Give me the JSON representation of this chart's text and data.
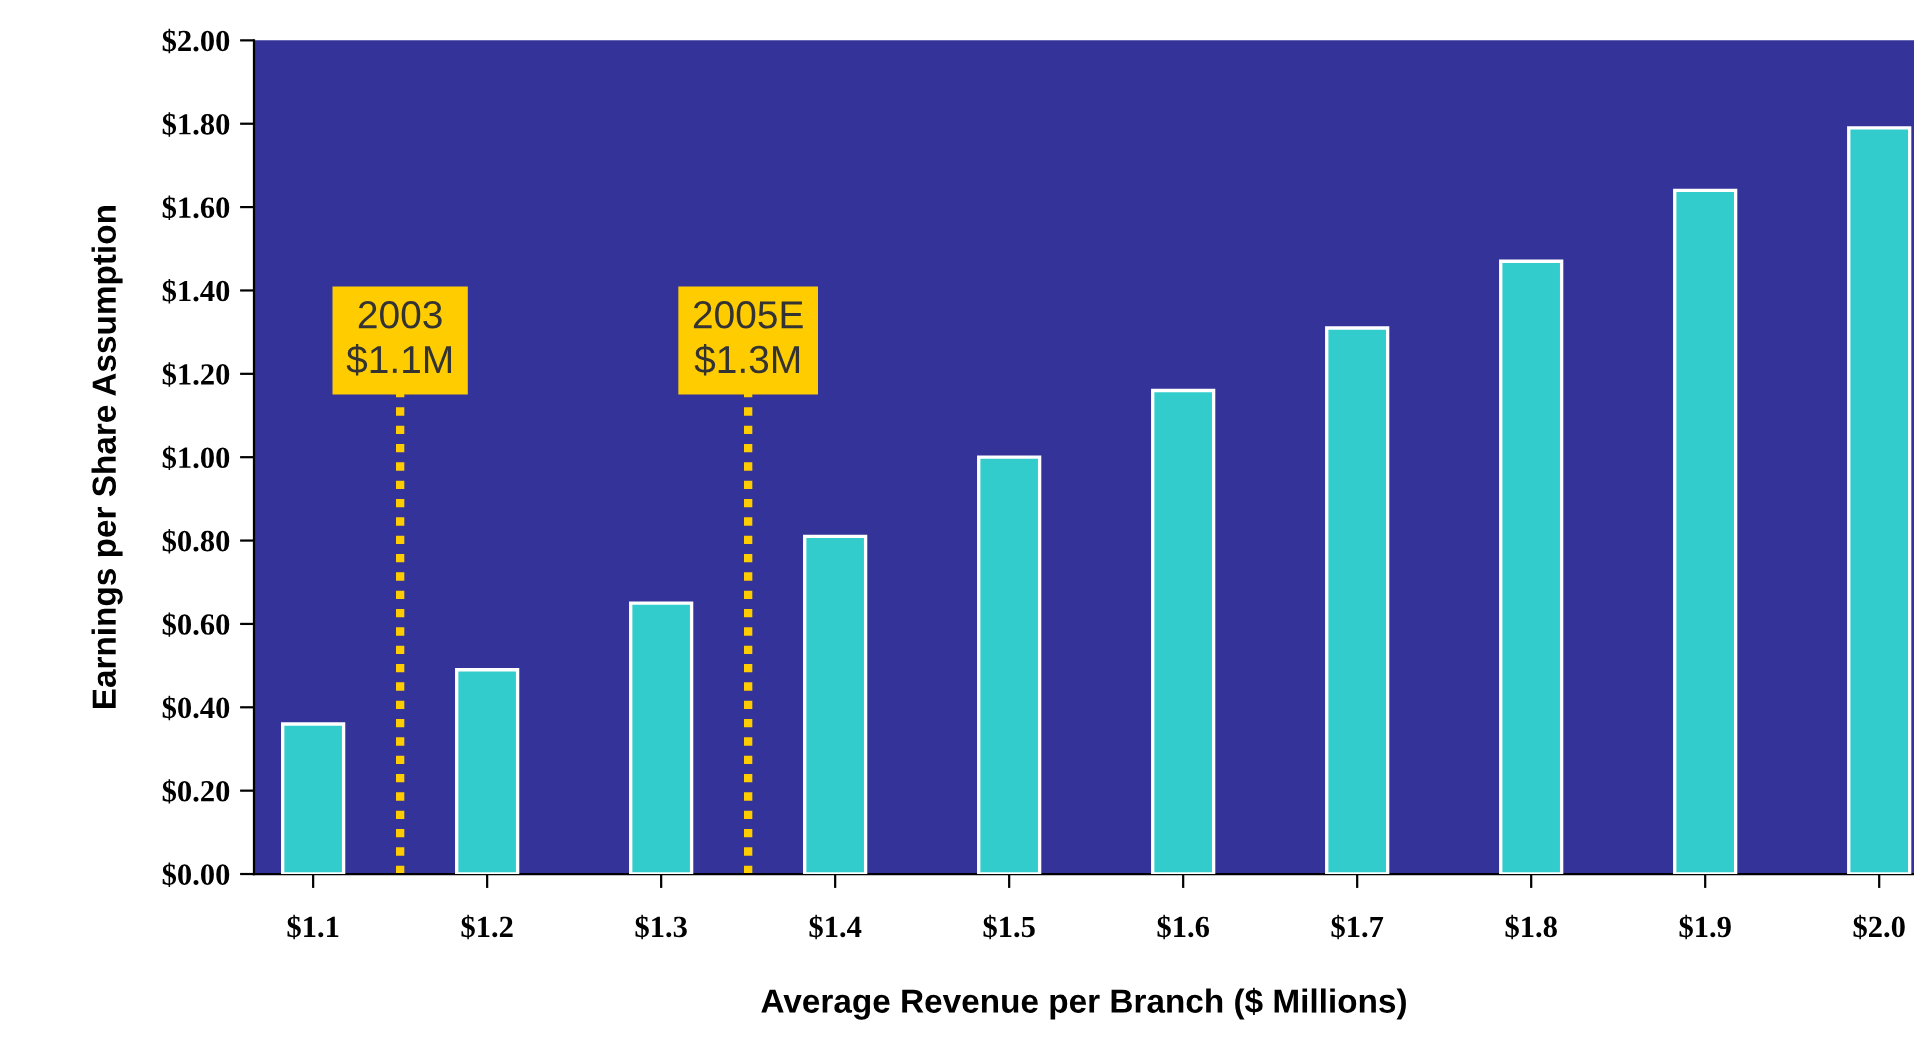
{
  "chart_data": {
    "type": "bar",
    "xlabel": "Average Revenue per Branch ($ Millions)",
    "ylabel": "Earnings per Share Assumption",
    "x": [
      1.1,
      1.2,
      1.3,
      1.4,
      1.5,
      1.6,
      1.7,
      1.8,
      1.9,
      2.0
    ],
    "values": [
      0.36,
      0.49,
      0.65,
      0.81,
      1.0,
      1.16,
      1.31,
      1.47,
      1.64,
      1.79
    ],
    "color": "#33cccc",
    "xlim": [
      1.066,
      2.02
    ],
    "xticks": [
      {
        "value": 1.1,
        "label": "$1.1"
      },
      {
        "value": 1.2,
        "label": "$1.2"
      },
      {
        "value": 1.3,
        "label": "$1.3"
      },
      {
        "value": 1.4,
        "label": "$1.4"
      },
      {
        "value": 1.5,
        "label": "$1.5"
      },
      {
        "value": 1.6,
        "label": "$1.6"
      },
      {
        "value": 1.7,
        "label": "$1.7"
      },
      {
        "value": 1.8,
        "label": "$1.8"
      },
      {
        "value": 1.9,
        "label": "$1.9"
      },
      {
        "value": 2.0,
        "label": "$2.0"
      }
    ],
    "ylim": [
      0,
      2
    ],
    "yticks": [
      {
        "value": 0,
        "label": "$0.00"
      },
      {
        "value": 0.2,
        "label": "$0.20"
      },
      {
        "value": 0.4,
        "label": "$0.40"
      },
      {
        "value": 0.6,
        "label": "$0.60"
      },
      {
        "value": 0.8,
        "label": "$0.80"
      },
      {
        "value": 1.0,
        "label": "$1.00"
      },
      {
        "value": 1.2,
        "label": "$1.20"
      },
      {
        "value": 1.4,
        "label": "$1.40"
      },
      {
        "value": 1.6,
        "label": "$1.60"
      },
      {
        "value": 1.8,
        "label": "$1.80"
      },
      {
        "value": 2.0,
        "label": "$2.00"
      }
    ],
    "ref_lines": [
      {
        "axis": "x",
        "value": 1.15,
        "label": "2003\n$1.1M",
        "color": "#ffcc00",
        "line_style": "dotted"
      },
      {
        "axis": "x",
        "value": 1.35,
        "label": "2005E\n$1.3M",
        "color": "#ffcc00",
        "line_style": "dotted"
      }
    ],
    "grid": false,
    "legend": false
  }
}
